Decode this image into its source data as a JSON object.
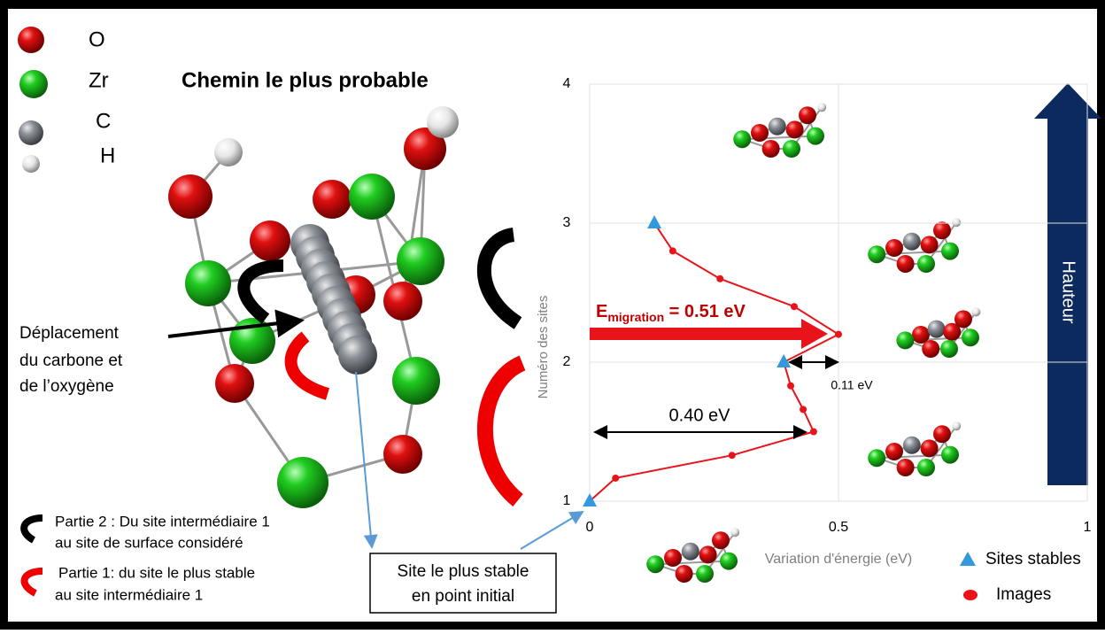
{
  "atom_legend": [
    "O",
    "Zr",
    "C",
    "H"
  ],
  "title": "Chemin le plus probable",
  "displacement_note": [
    "Déplacement",
    "du carbone et",
    "de l’oxygène"
  ],
  "parts": [
    [
      "Partie 2 : Du site intermédiaire 1",
      "au site de surface considéré"
    ],
    [
      "Partie 1: du site le plus stable",
      "au site intermédiaire 1"
    ]
  ],
  "initial_site_box": [
    "Site le plus stable",
    "en point initial"
  ],
  "chart_data": {
    "type": "line",
    "x_label": "Variation d'énergie (eV)",
    "y_label": "Numéro des sites",
    "xlim": [
      0,
      1
    ],
    "xticks": [
      0,
      0.5,
      1
    ],
    "ylim": [
      1,
      4
    ],
    "yticks": [
      1,
      2,
      3,
      4
    ],
    "grid": true,
    "series": [
      {
        "color": "#e8141a",
        "marker": "none",
        "x": [
          0,
          0.052,
          0.286,
          0.45,
          0.429,
          0.404,
          0.39,
          0.5,
          0.411,
          0.262,
          0.167,
          0.13
        ],
        "values": [
          1,
          1.166,
          1.33,
          1.5,
          1.66,
          1.83,
          2,
          2.2,
          2.4,
          2.6,
          2.8,
          3
        ]
      },
      {
        "name": "Sites stables",
        "color": "#3399dd",
        "marker": "triangle",
        "x": [
          0,
          0.39,
          0.13
        ],
        "values": [
          1,
          2,
          3
        ]
      },
      {
        "name": "Images",
        "color": "#e8141a",
        "marker": "circle",
        "x": [
          0.052,
          0.286,
          0.45,
          0.429,
          0.404,
          0.5,
          0.411,
          0.262,
          0.167
        ],
        "values": [
          1.166,
          1.33,
          1.5,
          1.66,
          1.83,
          2.2,
          2.4,
          2.6,
          2.8
        ]
      }
    ],
    "annotations": {
      "migration": [
        "E",
        "migration",
        " = 0.51 eV"
      ],
      "gap_low": "0.40 eV",
      "gap_high": "0.11 eV",
      "height_arrow": "Hauteur"
    }
  }
}
